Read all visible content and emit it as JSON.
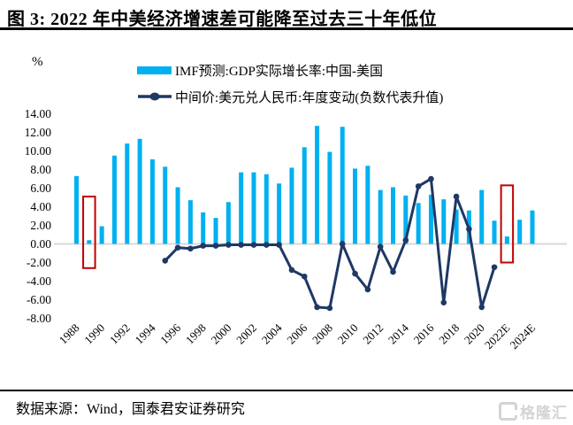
{
  "header": {
    "title": "图 3:  2022 年中美经济增速差可能降至过去三十年低位"
  },
  "legend": {
    "bar_label": "IMF预测:GDP实际增长率:中国-美国",
    "line_label": "中间价:美元兑人民币:年度变动(负数代表升值)"
  },
  "axes": {
    "unit_label": "%"
  },
  "footer": {
    "source": "数据来源：Wind，国泰君安证券研究",
    "logo_text": "格隆汇"
  },
  "colors": {
    "bar": "#00b0f0",
    "line": "#1f3864",
    "highlight": "#c00000",
    "baseline": "#d9d9d9",
    "text": "#000000",
    "logo": "#d4d4d4"
  },
  "chart_data": {
    "type": "bar+line combo",
    "title": "图 3: 2022 年中美经济增速差可能降至过去三十年低位",
    "ylabel": "%",
    "ylim": [
      -8,
      14
    ],
    "grid": "zero-line only",
    "legend_position": "top-center",
    "categories": [
      "1988",
      "1989",
      "1990",
      "1991",
      "1992",
      "1993",
      "1994",
      "1995",
      "1996",
      "1997",
      "1998",
      "1999",
      "2000",
      "2001",
      "2002",
      "2003",
      "2004",
      "2005",
      "2006",
      "2007",
      "2008",
      "2009",
      "2010",
      "2011",
      "2012",
      "2013",
      "2014",
      "2015",
      "2016",
      "2017",
      "2018",
      "2019",
      "2020",
      "2021",
      "2022E",
      "2023E",
      "2024E"
    ],
    "series": [
      {
        "name": "IMF预测:GDP实际增长率:中国-美国",
        "type": "bar",
        "values": [
          7.3,
          0.4,
          1.9,
          9.5,
          10.8,
          11.3,
          9.1,
          8.3,
          6.1,
          4.7,
          3.4,
          2.8,
          4.5,
          7.7,
          7.7,
          7.5,
          6.5,
          8.2,
          10.4,
          12.7,
          9.9,
          12.6,
          8.1,
          8.4,
          5.8,
          6.1,
          5.2,
          4.4,
          5.3,
          4.8,
          3.7,
          3.6,
          5.8,
          2.5,
          0.8,
          2.6,
          3.6
        ]
      },
      {
        "name": "中间价:美元兑人民币:年度变动(负数代表升值)",
        "type": "line",
        "values": [
          null,
          null,
          null,
          null,
          null,
          null,
          null,
          -1.8,
          -0.4,
          -0.5,
          -0.2,
          -0.2,
          -0.1,
          -0.1,
          -0.1,
          -0.1,
          -0.1,
          -2.8,
          -3.5,
          -6.8,
          -6.9,
          0.0,
          -3.2,
          -4.9,
          -0.3,
          -3.0,
          0.4,
          6.2,
          7.0,
          -6.3,
          5.1,
          1.6,
          -6.8,
          -2.5,
          null,
          null,
          null
        ]
      }
    ],
    "y_ticks": [
      14,
      12,
      10,
      8,
      6,
      4,
      2,
      0,
      -2,
      -4,
      -6,
      -8
    ],
    "y_tick_labels": [
      "14.00",
      "12.00",
      "10.00",
      "8.00",
      "6.00",
      "4.00",
      "2.00",
      "0.00",
      "-2.00",
      "-4.00",
      "-6.00",
      "-8.00"
    ],
    "x_tick_labels": [
      "1988",
      "1990",
      "1992",
      "1994",
      "1996",
      "1998",
      "2000",
      "2002",
      "2004",
      "2006",
      "2008",
      "2010",
      "2012",
      "2014",
      "2016",
      "2018",
      "2020",
      "2022E",
      "2024E"
    ],
    "highlights": [
      {
        "category": "1989",
        "top": 5.1,
        "bottom": -2.6
      },
      {
        "category": "2022E",
        "top": 6.3,
        "bottom": -2.0
      }
    ]
  }
}
